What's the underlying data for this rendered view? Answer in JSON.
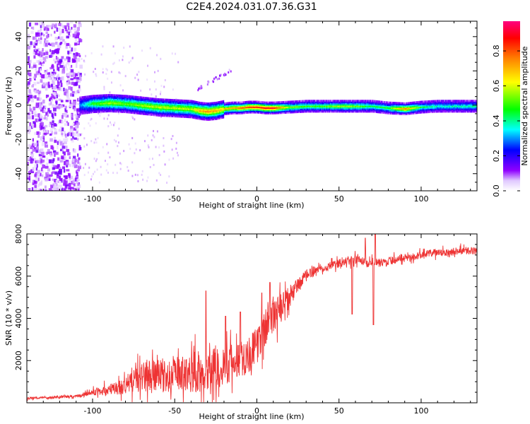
{
  "figure_title": "C2E4.2024.031.07.36.G31",
  "chart_data": [
    {
      "type": "heatmap",
      "title": "C2E4.2024.031.07.36.G31",
      "xlabel": "Height of straight line (km)",
      "ylabel": "Frequency (Hz)",
      "xlim": [
        -140,
        134
      ],
      "ylim": [
        -50,
        49
      ],
      "xticks": [
        -100,
        -50,
        0,
        50,
        100
      ],
      "yticks": [
        -40,
        -20,
        0,
        20,
        40
      ],
      "colorbar": {
        "label": "Normalized spectral amplitude",
        "range": [
          0,
          0.97
        ],
        "ticks": [
          0.0,
          0.2,
          0.4,
          0.6,
          0.8
        ],
        "colormap": [
          "#ffffff",
          "#8f00ff",
          "#0000ff",
          "#00ffff",
          "#00ff00",
          "#ffff00",
          "#ff8000",
          "#ff0000",
          "#ff0080"
        ]
      },
      "signal_ridge": {
        "x_km": [
          -108,
          -100,
          -90,
          -80,
          -70,
          -60,
          -50,
          -40,
          -35,
          -30,
          -25,
          -20,
          -15,
          -10,
          -5,
          0,
          5,
          10,
          20,
          30,
          40,
          50,
          60,
          70,
          80,
          90,
          100,
          110,
          120,
          134
        ],
        "freq_hz": [
          0,
          1,
          1.5,
          1,
          0,
          -1,
          -1.5,
          -2,
          -3,
          -3.5,
          -3,
          -2,
          -1.5,
          -1.5,
          -1,
          -1,
          -1.5,
          -1.5,
          -1,
          -0.5,
          -0.5,
          -0.5,
          -0.5,
          -0.5,
          -1.5,
          -2,
          -1,
          -0.5,
          -0.5,
          -0.5
        ],
        "peak_amplitude": [
          0.3,
          0.5,
          0.6,
          0.55,
          0.6,
          0.62,
          0.62,
          0.62,
          0.75,
          0.8,
          0.75,
          0.7,
          0.72,
          0.8,
          0.85,
          0.88,
          0.9,
          0.9,
          0.55,
          0.5,
          0.52,
          0.58,
          0.55,
          0.45,
          0.5,
          0.78,
          0.45,
          0.4,
          0.4,
          0.4
        ]
      },
      "noise_region_x_km": [
        -140,
        -108
      ],
      "secondary_trace": {
        "x_km": [
          -38,
          -16
        ],
        "freq_hz": [
          9,
          21
        ]
      }
    },
    {
      "type": "line",
      "xlabel": "Height of straight line (km)",
      "ylabel": "SNR (10 * v/v)",
      "xlim": [
        -140,
        134
      ],
      "ylim": [
        0,
        8000
      ],
      "xticks": [
        -100,
        -50,
        0,
        50,
        100
      ],
      "yticks": [
        2000,
        4000,
        6000,
        8000
      ],
      "color": "#ee3333",
      "series": [
        {
          "x": [
            -140,
            -130,
            -120,
            -110,
            -100,
            -90,
            -80,
            -75,
            -70,
            -65,
            -60,
            -55,
            -50,
            -45,
            -40,
            -35,
            -30,
            -25,
            -20,
            -15,
            -10,
            -5,
            0,
            5,
            10,
            15,
            20,
            25,
            30,
            35,
            40,
            45,
            50,
            55,
            60,
            65,
            70,
            75,
            80,
            85,
            90,
            95,
            100,
            105,
            110,
            115,
            120,
            125,
            134
          ],
          "values": [
            200,
            250,
            280,
            300,
            500,
            600,
            800,
            1100,
            1200,
            1300,
            1300,
            1200,
            1300,
            1400,
            1400,
            1500,
            1600,
            1700,
            1800,
            1900,
            2100,
            2300,
            2700,
            3500,
            4200,
            4500,
            5000,
            5600,
            6000,
            6300,
            6400,
            6500,
            6600,
            6700,
            6800,
            6700,
            6700,
            6600,
            6700,
            6800,
            6900,
            6900,
            7000,
            7100,
            7100,
            7100,
            7200,
            7200,
            7200
          ],
          "noise_amplitude": [
            80,
            80,
            90,
            100,
            200,
            400,
            600,
            900,
            1000,
            1100,
            1100,
            1100,
            1100,
            1200,
            1300,
            1500,
            1400,
            1500,
            1400,
            1300,
            1300,
            1300,
            1200,
            1300,
            1300,
            1000,
            800,
            500,
            400,
            300,
            300,
            300,
            300,
            300,
            300,
            300,
            300,
            300,
            300,
            250,
            250,
            250,
            250,
            250,
            250,
            250,
            250,
            250,
            250
          ]
        }
      ],
      "spikes": [
        {
          "x": -31,
          "y": 5300
        },
        {
          "x": -19,
          "y": 4100
        },
        {
          "x": -10,
          "y": 4300
        },
        {
          "x": 3,
          "y": 5200
        },
        {
          "x": 8,
          "y": 5700
        },
        {
          "x": 58,
          "y": 4200
        },
        {
          "x": 66,
          "y": 7800
        },
        {
          "x": 71,
          "y": 3700
        },
        {
          "x": 72,
          "y": 8000
        }
      ]
    }
  ]
}
